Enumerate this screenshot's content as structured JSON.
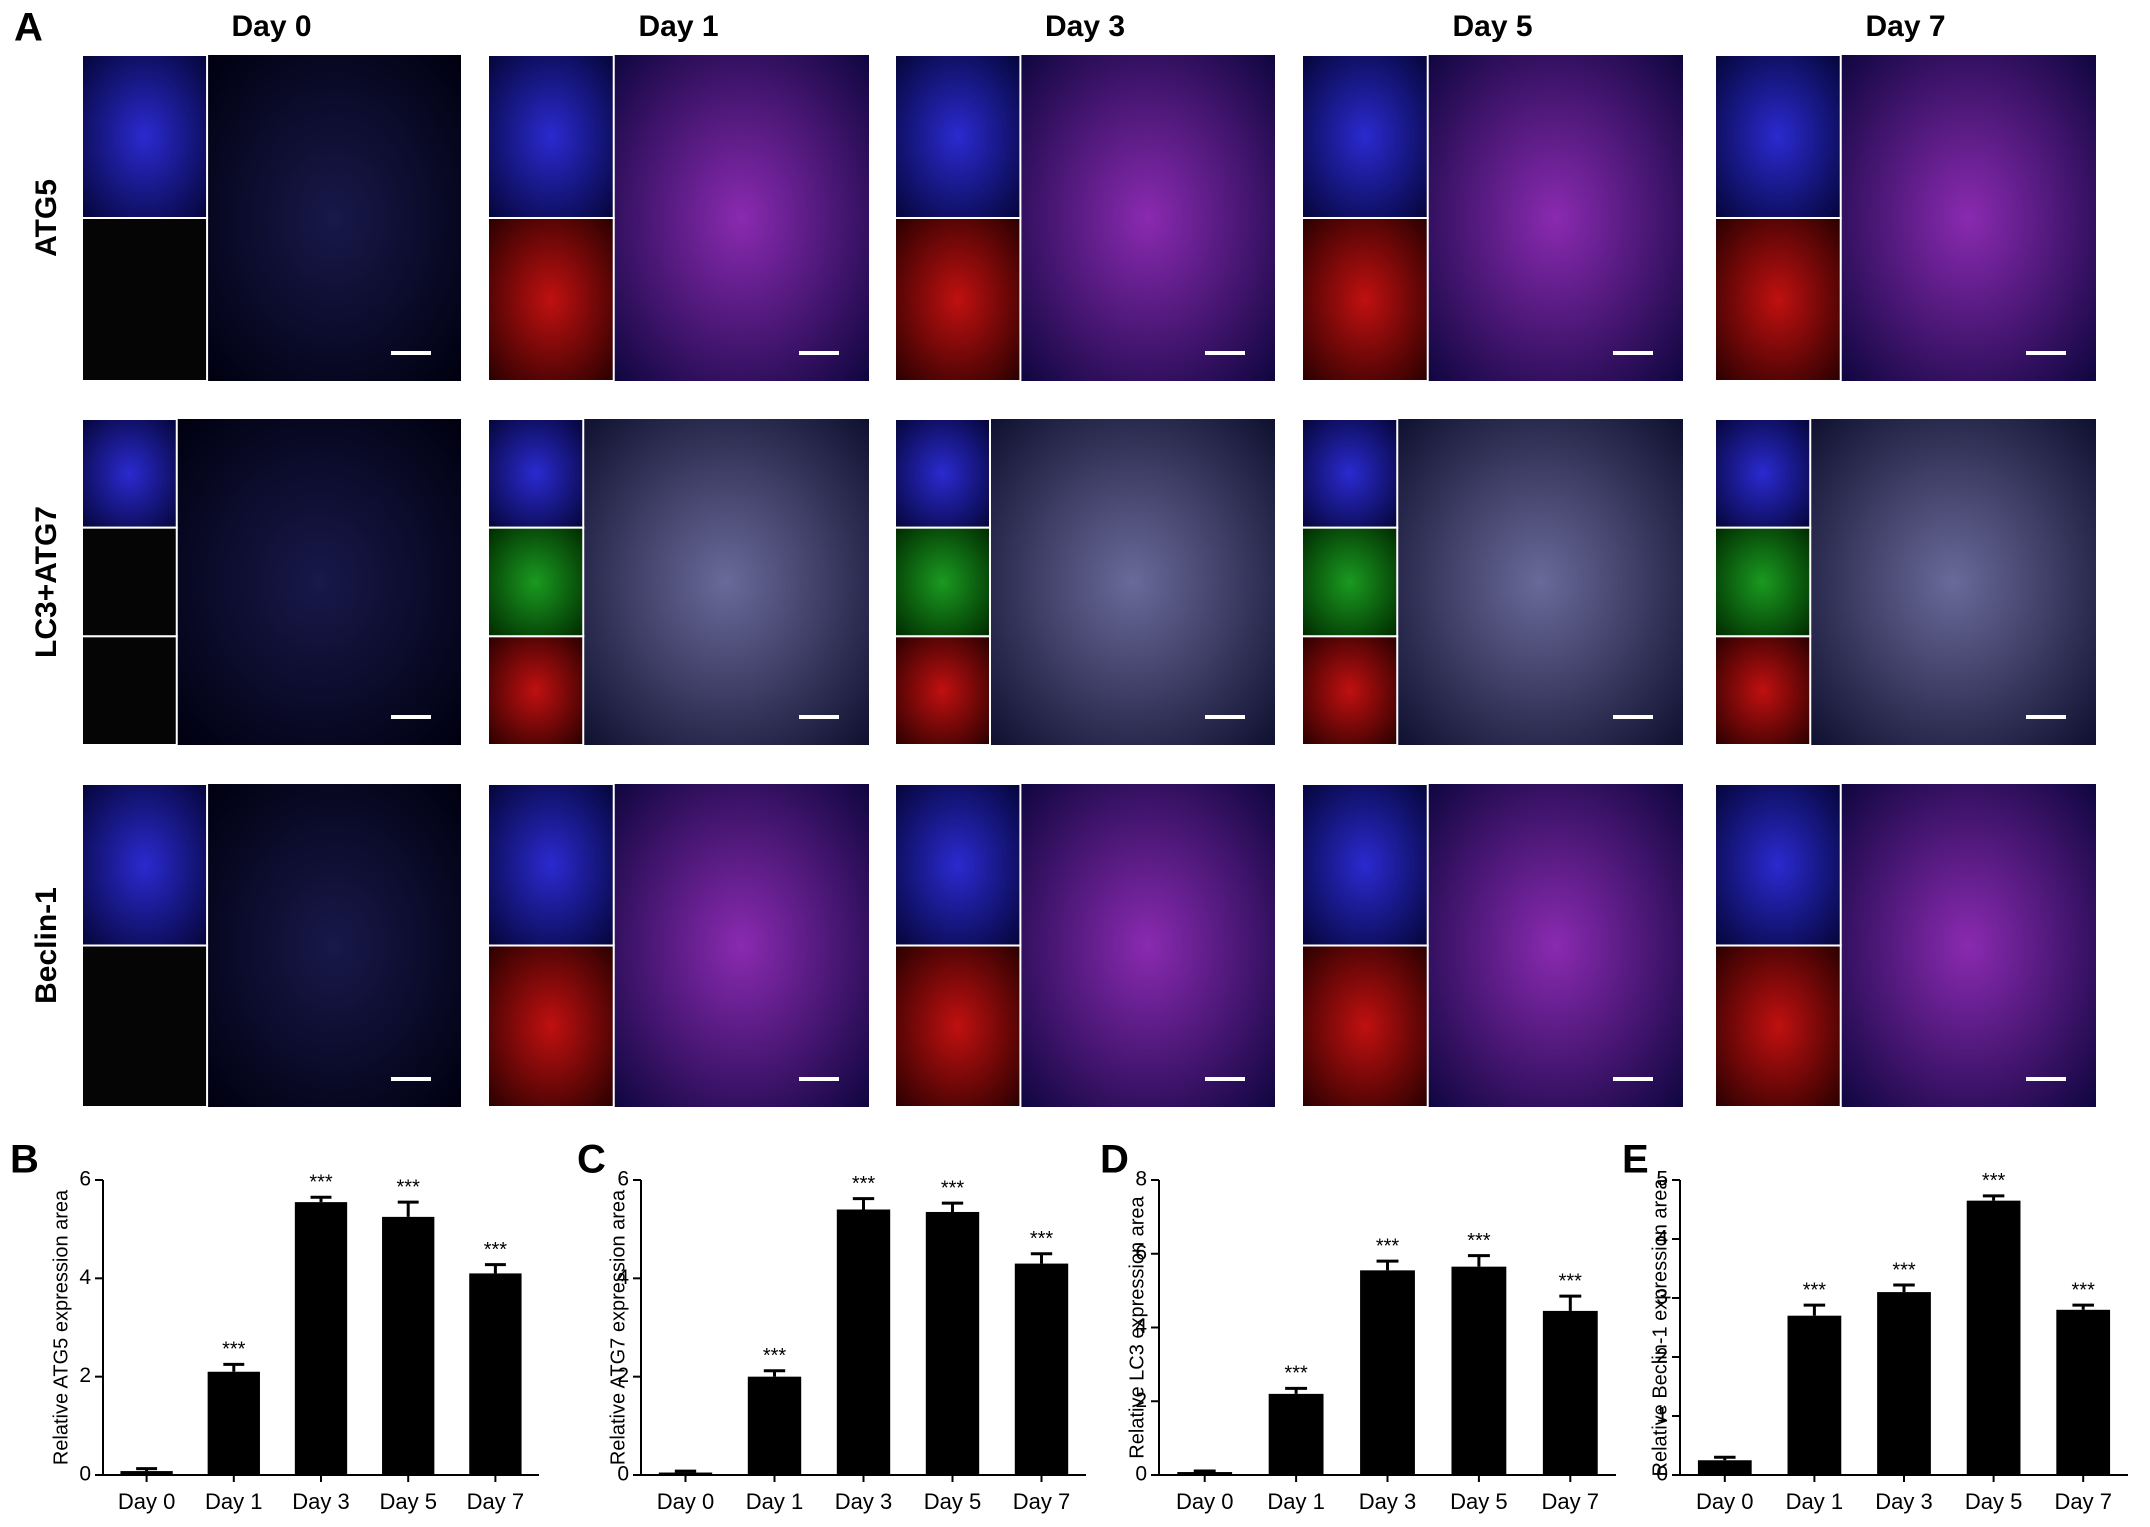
{
  "panel_a": {
    "label": "A",
    "columns": [
      "Day 0",
      "Day 1",
      "Day 3",
      "Day 5",
      "Day 7"
    ],
    "rows": [
      "ATG5",
      "LC3+ATG7",
      "Beclin-1"
    ]
  },
  "chart_data": [
    {
      "type": "bar",
      "panel": "B",
      "y_label": "Relative ATG5 expression area",
      "categories": [
        "Day 0",
        "Day 1",
        "Day 3",
        "Day 5",
        "Day 7"
      ],
      "values": [
        0.08,
        2.1,
        5.55,
        5.25,
        4.1
      ],
      "errors": [
        0.05,
        0.15,
        0.1,
        0.3,
        0.18
      ],
      "significance": [
        null,
        "***",
        "***",
        "***",
        "***"
      ],
      "color": "#000000",
      "ylim": [
        0,
        6
      ],
      "yticks": [
        0,
        2,
        4,
        6
      ]
    },
    {
      "type": "bar",
      "panel": "C",
      "y_label": "Relative ATG7 expression area",
      "categories": [
        "Day 0",
        "Day 1",
        "Day 3",
        "Day 5",
        "Day 7"
      ],
      "values": [
        0.05,
        2.0,
        5.4,
        5.35,
        4.3
      ],
      "errors": [
        0.03,
        0.12,
        0.22,
        0.18,
        0.2
      ],
      "significance": [
        null,
        "***",
        "***",
        "***",
        "***"
      ],
      "color": "#000000",
      "ylim": [
        0,
        6
      ],
      "yticks": [
        0,
        2,
        4,
        6
      ]
    },
    {
      "type": "bar",
      "panel": "D",
      "y_label": "Relative LC3 expression area",
      "categories": [
        "Day 0",
        "Day 1",
        "Day 3",
        "Day 5",
        "Day 7"
      ],
      "values": [
        0.08,
        2.2,
        5.55,
        5.65,
        4.45
      ],
      "errors": [
        0.03,
        0.15,
        0.25,
        0.3,
        0.4
      ],
      "significance": [
        null,
        "***",
        "***",
        "***",
        "***"
      ],
      "color": "#000000",
      "ylim": [
        0,
        8
      ],
      "yticks": [
        0,
        2,
        4,
        6,
        8
      ]
    },
    {
      "type": "bar",
      "panel": "E",
      "y_label": "Relative Beclin-1 expression area",
      "categories": [
        "Day 0",
        "Day 1",
        "Day 3",
        "Day 5",
        "Day 7"
      ],
      "values": [
        0.25,
        2.7,
        3.1,
        4.65,
        2.8
      ],
      "errors": [
        0.05,
        0.18,
        0.12,
        0.08,
        0.08
      ],
      "significance": [
        null,
        "***",
        "***",
        "***",
        "***"
      ],
      "color": "#000000",
      "ylim": [
        0,
        5
      ],
      "yticks": [
        0,
        1,
        2,
        3,
        4,
        5
      ]
    }
  ]
}
